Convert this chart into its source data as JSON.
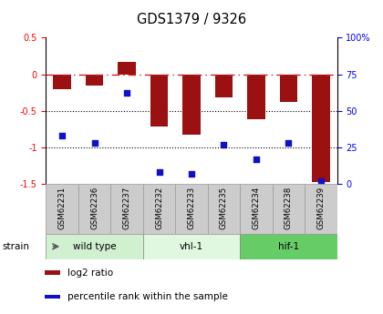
{
  "title": "GDS1379 / 9326",
  "samples": [
    "GSM62231",
    "GSM62236",
    "GSM62237",
    "GSM62232",
    "GSM62233",
    "GSM62235",
    "GSM62234",
    "GSM62238",
    "GSM62239"
  ],
  "log2_ratio": [
    -0.2,
    -0.15,
    0.17,
    -0.72,
    -0.83,
    -0.32,
    -0.62,
    -0.38,
    -1.48
  ],
  "percentile_rank": [
    33,
    28,
    62,
    8,
    7,
    27,
    17,
    28,
    2
  ],
  "ylim_left": [
    -1.5,
    0.5
  ],
  "ylim_right": [
    0,
    100
  ],
  "yticks_left": [
    0.5,
    0,
    -0.5,
    -1.0,
    -1.5
  ],
  "ytick_labels_left": [
    "0.5",
    "0",
    "-0.5",
    "-1",
    "-1.5"
  ],
  "yticks_right": [
    100,
    75,
    50,
    25,
    0
  ],
  "ytick_labels_right": [
    "100%",
    "75",
    "50",
    "25",
    "0"
  ],
  "hline_y": [
    -0.5,
    -1.0
  ],
  "bar_color": "#9B1010",
  "point_color": "#1010CC",
  "dashed_color": "#CC2222",
  "groups": [
    {
      "label": "wild type",
      "start": 0,
      "end": 3,
      "color": "#d0f0d0"
    },
    {
      "label": "vhl-1",
      "start": 3,
      "end": 6,
      "color": "#e0f8e0"
    },
    {
      "label": "hif-1",
      "start": 6,
      "end": 9,
      "color": "#66cc66"
    }
  ],
  "strain_label": "strain",
  "legend_entries": [
    {
      "label": "log2 ratio",
      "color": "#9B1010"
    },
    {
      "label": "percentile rank within the sample",
      "color": "#1010CC"
    }
  ],
  "xlabel_bg": "#cccccc",
  "title_fontsize": 10.5
}
